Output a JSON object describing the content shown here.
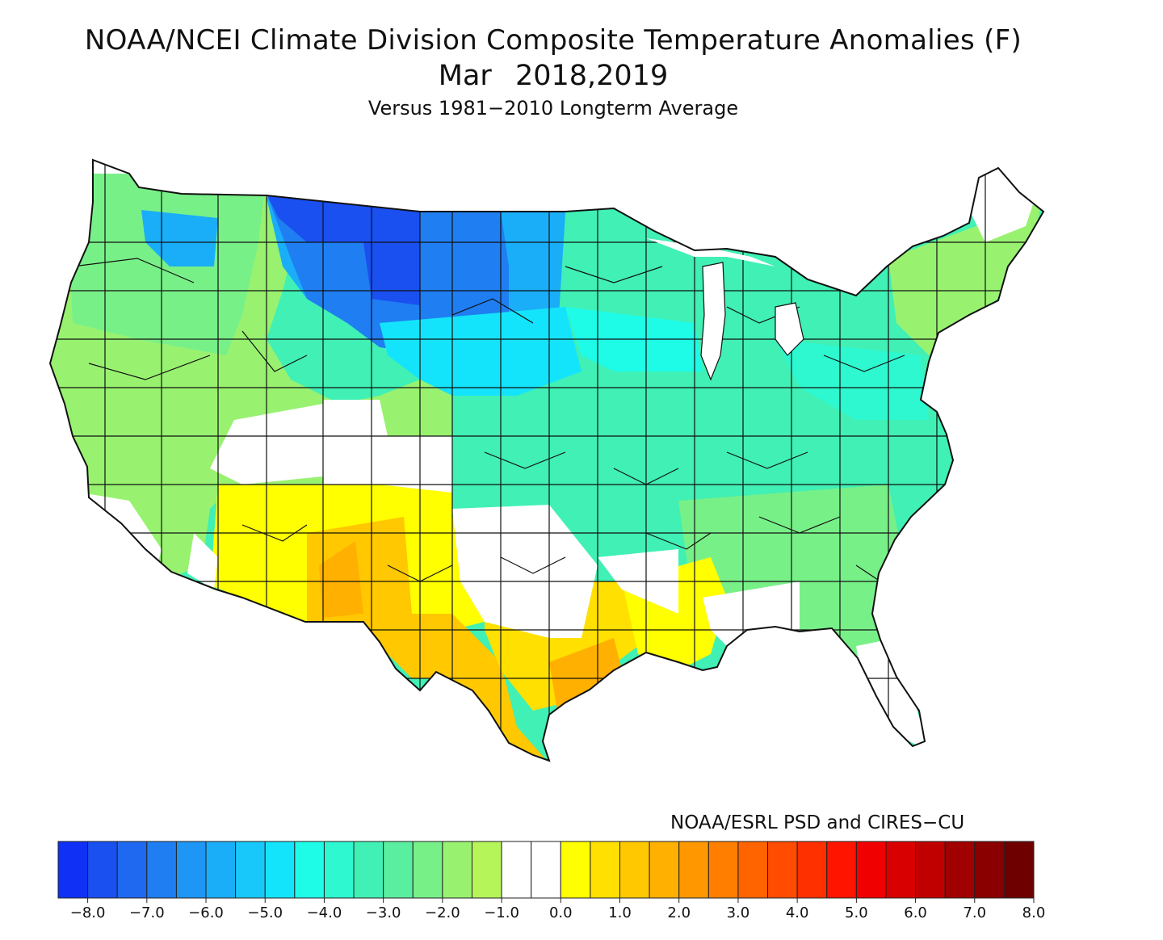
{
  "title": {
    "line1": "NOAA/NCEI Climate Division Composite Temperature Anomalies (F)",
    "line2": "Mar  2018,2019",
    "line3": "Versus 1981−2010 Longterm Average"
  },
  "credit": "NOAA/ESRL PSD and CIRES−CU",
  "colorbar": {
    "colors": [
      "#1030f5",
      "#1a4ff0",
      "#1f68f0",
      "#1f7ef2",
      "#1d96f5",
      "#1aaef8",
      "#19c8fa",
      "#14e4fb",
      "#1efce8",
      "#2ef8d0",
      "#40f0b4",
      "#5aeea0",
      "#78f088",
      "#98f270",
      "#b6f55a",
      "#ffffff",
      "#ffffff",
      "#ffff00",
      "#ffe000",
      "#ffc800",
      "#ffb000",
      "#ff9800",
      "#ff7e00",
      "#ff6400",
      "#ff4c00",
      "#ff3000",
      "#ff1400",
      "#f00000",
      "#d80000",
      "#c00000",
      "#a00000",
      "#8a0000",
      "#6e0000"
    ],
    "tick_labels": [
      "−8.0",
      "−7.0",
      "−6.0",
      "−5.0",
      "−4.0",
      "−3.0",
      "−2.0",
      "−1.0",
      "0.0",
      "1.0",
      "2.0",
      "3.0",
      "4.0",
      "5.0",
      "6.0",
      "7.0",
      "8.0"
    ]
  },
  "map": {
    "regions": [
      {
        "name": "northern-plains-coldest",
        "anomaly": -7.0,
        "color": "#1a4ff0"
      },
      {
        "name": "northern-plains-cold",
        "anomaly": -6.0,
        "color": "#1f7ef2"
      },
      {
        "name": "northern-rockies",
        "anomaly": -4.5,
        "color": "#1aaef8"
      },
      {
        "name": "central-plains",
        "anomaly": -3.5,
        "color": "#14e4fb"
      },
      {
        "name": "midwest-east",
        "anomaly": -2.5,
        "color": "#40f0b4"
      },
      {
        "name": "west",
        "anomaly": -1.5,
        "color": "#98f270"
      },
      {
        "name": "southwest",
        "anomaly": 1.0,
        "color": "#ffff00"
      },
      {
        "name": "new-mexico-west-texas",
        "anomaly": 2.0,
        "color": "#ffc800"
      },
      {
        "name": "southeast-texas",
        "anomaly": 2.5,
        "color": "#ffb000"
      },
      {
        "name": "near-normal-areas",
        "anomaly": 0.0,
        "color": "#ffffff"
      }
    ]
  }
}
